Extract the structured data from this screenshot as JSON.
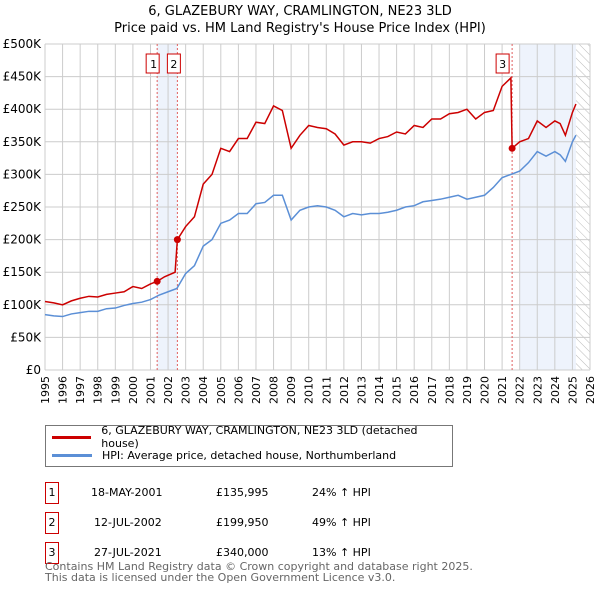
{
  "title": "6, GLAZEBURY WAY, CRAMLINGTON, NE23 3LD",
  "subtitle": "Price paid vs. HM Land Registry's House Price Index (HPI)",
  "chart_data": {
    "type": "line",
    "xlim": [
      1995,
      2026
    ],
    "ylim": [
      0,
      500000
    ],
    "x_ticks": [
      "1995",
      "1996",
      "1997",
      "1998",
      "1999",
      "2000",
      "2001",
      "2002",
      "2003",
      "2004",
      "2005",
      "2006",
      "2007",
      "2008",
      "2009",
      "2010",
      "2011",
      "2012",
      "2013",
      "2014",
      "2015",
      "2016",
      "2017",
      "2018",
      "2019",
      "2020",
      "2021",
      "2022",
      "2023",
      "2024",
      "2025",
      "2026"
    ],
    "y_ticks": [
      {
        "v": 0,
        "l": "£0"
      },
      {
        "v": 50000,
        "l": "£50K"
      },
      {
        "v": 100000,
        "l": "£100K"
      },
      {
        "v": 150000,
        "l": "£150K"
      },
      {
        "v": 200000,
        "l": "£200K"
      },
      {
        "v": 250000,
        "l": "£250K"
      },
      {
        "v": 300000,
        "l": "£300K"
      },
      {
        "v": 350000,
        "l": "£350K"
      },
      {
        "v": 400000,
        "l": "£400K"
      },
      {
        "v": 450000,
        "l": "£450K"
      },
      {
        "v": 500000,
        "l": "£500K"
      }
    ],
    "series": [
      {
        "name": "6, GLAZEBURY WAY, CRAMLINGTON, NE23 3LD (detached house)",
        "color": "#cc0000",
        "x": [
          1995,
          1995.5,
          1996,
          1996.5,
          1997,
          1997.5,
          1998,
          1998.5,
          1999,
          1999.5,
          2000,
          2000.5,
          2001,
          2001.38,
          2001.8,
          2002.4,
          2002.53,
          2003,
          2003.5,
          2004,
          2004.5,
          2005,
          2005.5,
          2006,
          2006.5,
          2007,
          2007.5,
          2008,
          2008.5,
          2009,
          2009.5,
          2010,
          2010.5,
          2011,
          2011.5,
          2012,
          2012.5,
          2013,
          2013.5,
          2014,
          2014.5,
          2015,
          2015.5,
          2016,
          2016.5,
          2017,
          2017.5,
          2018,
          2018.5,
          2019,
          2019.5,
          2020,
          2020.5,
          2021,
          2021.5,
          2021.57,
          2022,
          2022.5,
          2023,
          2023.5,
          2024,
          2024.3,
          2024.6,
          2025,
          2025.2
        ],
        "y": [
          105000,
          103000,
          100000,
          106000,
          110000,
          113000,
          112000,
          116000,
          118000,
          120000,
          128000,
          125000,
          132000,
          135995,
          143000,
          150000,
          199950,
          220000,
          235000,
          285000,
          300000,
          340000,
          335000,
          355000,
          355000,
          380000,
          378000,
          405000,
          398000,
          340000,
          360000,
          375000,
          372000,
          370000,
          362000,
          345000,
          350000,
          350000,
          348000,
          355000,
          358000,
          365000,
          362000,
          375000,
          372000,
          385000,
          385000,
          393000,
          395000,
          400000,
          385000,
          395000,
          398000,
          435000,
          448000,
          340000,
          350000,
          355000,
          382000,
          372000,
          382000,
          378000,
          360000,
          395000,
          408000
        ]
      },
      {
        "name": "HPI: Average price, detached house, Northumberland",
        "color": "#5b8fd6",
        "x": [
          1995,
          1995.5,
          1996,
          1996.5,
          1997,
          1997.5,
          1998,
          1998.5,
          1999,
          1999.5,
          2000,
          2000.5,
          2001,
          2001.5,
          2002,
          2002.5,
          2003,
          2003.5,
          2004,
          2004.5,
          2005,
          2005.5,
          2006,
          2006.5,
          2007,
          2007.5,
          2008,
          2008.5,
          2009,
          2009.5,
          2010,
          2010.5,
          2011,
          2011.5,
          2012,
          2012.5,
          2013,
          2013.5,
          2014,
          2014.5,
          2015,
          2015.5,
          2016,
          2016.5,
          2017,
          2017.5,
          2018,
          2018.5,
          2019,
          2019.5,
          2020,
          2020.5,
          2021,
          2021.5,
          2022,
          2022.5,
          2023,
          2023.5,
          2024,
          2024.3,
          2024.6,
          2025,
          2025.2
        ],
        "y": [
          85000,
          83000,
          82000,
          86000,
          88000,
          90000,
          90000,
          94000,
          95000,
          99000,
          102000,
          104000,
          108000,
          115000,
          120000,
          125000,
          148000,
          160000,
          190000,
          200000,
          225000,
          230000,
          240000,
          240000,
          255000,
          257000,
          268000,
          268000,
          230000,
          245000,
          250000,
          252000,
          250000,
          245000,
          235000,
          240000,
          238000,
          240000,
          240000,
          242000,
          245000,
          250000,
          252000,
          258000,
          260000,
          262000,
          265000,
          268000,
          262000,
          265000,
          268000,
          280000,
          295000,
          300000,
          305000,
          318000,
          335000,
          328000,
          335000,
          330000,
          320000,
          350000,
          360000
        ]
      }
    ],
    "sales": [
      {
        "label": "1",
        "date": "18-MAY-2001",
        "x": 2001.38,
        "price": "£135,995",
        "value": 135995,
        "hpi": "24% ↑ HPI"
      },
      {
        "label": "2",
        "date": "12-JUL-2002",
        "x": 2002.53,
        "price": "£199,950",
        "value": 199950,
        "hpi": "49% ↑ HPI"
      },
      {
        "label": "3",
        "date": "27-JUL-2021",
        "x": 2021.57,
        "price": "£340,000",
        "value": 340000,
        "hpi": "13% ↑ HPI"
      }
    ],
    "shaded_ranges": [
      [
        2001.38,
        2002.53
      ],
      [
        2022.0,
        2025.2
      ]
    ],
    "forecast_start": 2025.2
  },
  "footer": [
    "Contains HM Land Registry data © Crown copyright and database right 2025.",
    "This data is licensed under the Open Government Licence v3.0."
  ]
}
